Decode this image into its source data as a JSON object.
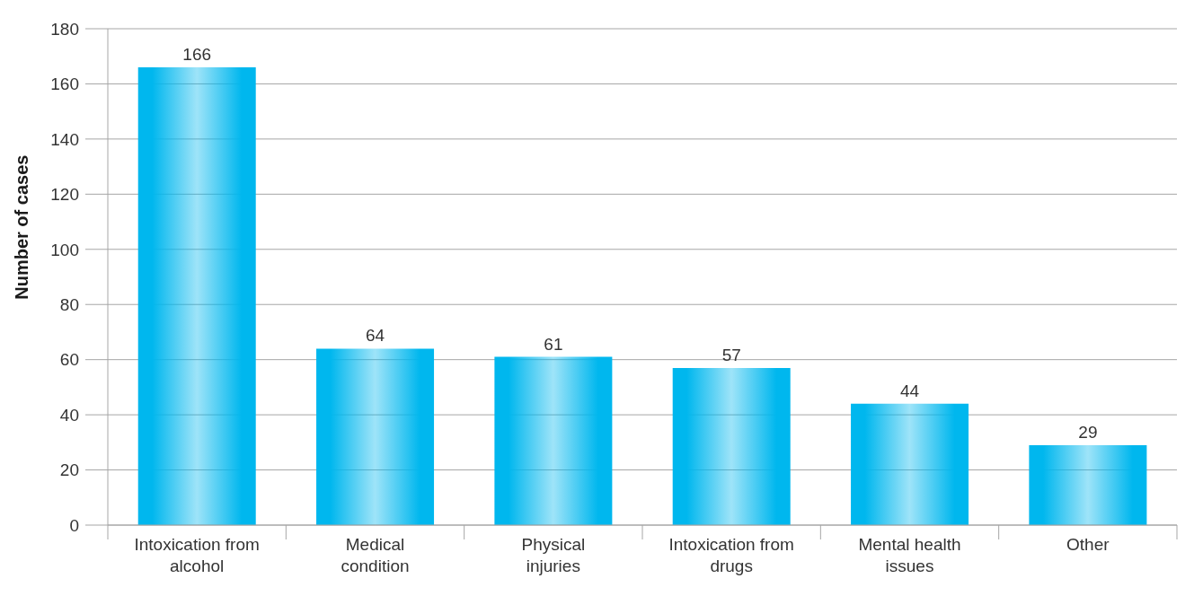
{
  "chart_data": {
    "type": "bar",
    "ylabel": "Number of cases",
    "categories": [
      "Intoxication from\nalcohol",
      "Medical\ncondition",
      "Physical\ninjuries",
      "Intoxication from\ndrugs",
      "Mental health\nissues",
      "Other"
    ],
    "values": [
      166,
      64,
      61,
      57,
      44,
      29
    ],
    "color": "#00b7ee",
    "ylim": [
      0,
      180
    ],
    "yticks": [
      0,
      20,
      40,
      60,
      80,
      100,
      120,
      140,
      160,
      180
    ],
    "grid": "y",
    "data_labels": true
  }
}
